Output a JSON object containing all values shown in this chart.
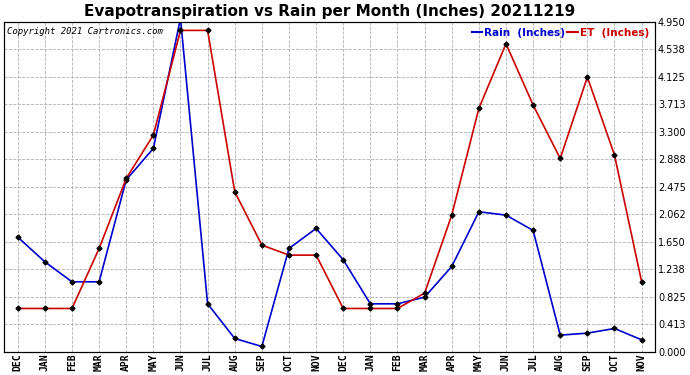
{
  "title": "Evapotranspiration vs Rain per Month (Inches) 20211219",
  "copyright": "Copyright 2021 Cartronics.com",
  "legend_rain": "Rain  (Inches)",
  "legend_et": "ET  (Inches)",
  "x_labels": [
    "DEC",
    "JAN",
    "FEB",
    "MAR",
    "APR",
    "MAY",
    "JUN",
    "JUL",
    "AUG",
    "SEP",
    "OCT",
    "NOV",
    "DEC",
    "JAN",
    "FEB",
    "MAR",
    "APR",
    "MAY",
    "JUN",
    "JUL",
    "AUG",
    "SEP",
    "OCT",
    "NOV"
  ],
  "rain_values": [
    1.72,
    1.35,
    1.05,
    1.05,
    2.58,
    3.05,
    5.0,
    0.72,
    0.2,
    0.08,
    1.55,
    1.85,
    1.38,
    0.72,
    0.72,
    0.82,
    1.28,
    2.1,
    2.05,
    1.82,
    0.25,
    0.28,
    0.35,
    0.18
  ],
  "et_values": [
    0.65,
    0.65,
    0.65,
    1.55,
    2.6,
    3.25,
    4.82,
    4.82,
    2.4,
    1.6,
    1.45,
    1.45,
    0.65,
    0.65,
    0.65,
    0.88,
    2.05,
    3.65,
    4.62,
    3.7,
    2.9,
    4.12,
    2.95,
    1.05
  ],
  "rain_color": "#0000cc",
  "et_color": "#cc0000",
  "marker_color": "#000000",
  "ylim": [
    0.0,
    4.95
  ],
  "yticks": [
    0.0,
    0.413,
    0.825,
    1.238,
    1.65,
    2.062,
    2.475,
    2.888,
    3.3,
    3.713,
    4.125,
    4.538,
    4.95
  ],
  "background_color": "#ffffff",
  "grid_color": "#b0b0b0",
  "title_fontsize": 11,
  "label_fontsize": 7.5,
  "tick_fontsize": 7,
  "fig_width": 6.9,
  "fig_height": 3.75,
  "dpi": 100
}
